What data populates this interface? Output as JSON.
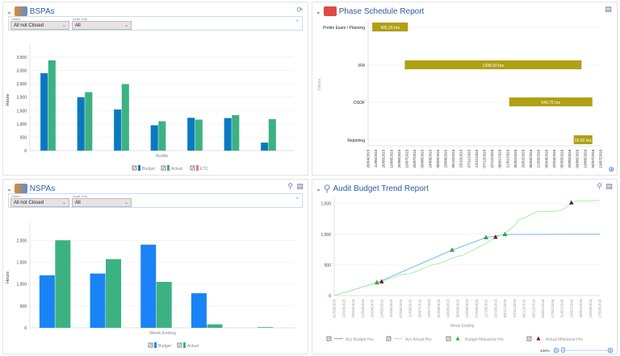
{
  "bspas": {
    "title": "BSPAs",
    "filters": {
      "status_label": "Status",
      "status_value": "All not Closed",
      "year_label": "Audit Year",
      "year_value": "All"
    },
    "colors": {
      "budget": "#0a79bf",
      "actual": "#3cb283",
      "etc": "#d98080"
    },
    "legend": [
      "Budget",
      "Actual",
      "ETC"
    ]
  },
  "nspas": {
    "title": "NSPAs",
    "filters": {
      "status_label": "Status",
      "status_value": "All not Closed",
      "year_label": "Audit Year",
      "year_value": "All"
    },
    "colors": {
      "budget": "#1a83f5",
      "actual": "#3cb283"
    },
    "legend": [
      "Budget",
      "Actual"
    ]
  },
  "phase": {
    "title": "Phase Schedule Report",
    "color": "#b0a014"
  },
  "trend": {
    "title": "Audit Budget Trend Report",
    "zoom_label": "100%",
    "zoom_level": 0.25,
    "colors": {
      "budget": "#6aaef0",
      "actual": "#9ef09a",
      "budget_ms": "#22bb22",
      "actual_ms": "#7a1030"
    }
  },
  "chart_data": [
    {
      "type": "bar",
      "id": "bspas",
      "xlabel": "Audits",
      "ylabel": "Hours",
      "ylim": [
        0,
        3800
      ],
      "yticks": [
        0,
        500,
        1000,
        1500,
        2000,
        2500,
        3000,
        3500
      ],
      "ytick_labels": [
        "0",
        "500",
        "1,000",
        "1,500",
        "2,000",
        "2,500",
        "3,000",
        "3,500"
      ],
      "grid": true,
      "legend": "bottom",
      "series": [
        {
          "name": "Budget",
          "values": [
            2900,
            2000,
            1540,
            950,
            1230,
            1220,
            300
          ]
        },
        {
          "name": "Actual",
          "values": [
            3380,
            2190,
            2490,
            1100,
            1160,
            1330,
            1180
          ]
        },
        {
          "name": "ETC",
          "values": [
            0,
            0,
            0,
            0,
            0,
            0,
            0
          ]
        }
      ]
    },
    {
      "type": "bar",
      "id": "nspas",
      "xlabel": "Week Ending",
      "ylabel": "Hours",
      "ylim": [
        0,
        2300
      ],
      "yticks": [
        0,
        500,
        1000,
        1500,
        2000
      ],
      "ytick_labels": [
        "0",
        "500",
        "1,000",
        "1,500",
        "2,000"
      ],
      "grid": true,
      "legend": "bottom",
      "series": [
        {
          "name": "Budget",
          "values": [
            1200,
            1240,
            1900,
            790,
            0
          ]
        },
        {
          "name": "Actual",
          "values": [
            2000,
            1570,
            1050,
            80,
            15
          ]
        }
      ]
    },
    {
      "type": "bar",
      "orientation": "horizontal-gantt",
      "id": "phase",
      "ylabel": "Values",
      "categories": [
        "Prelim Exam / Planning",
        "IFR",
        "DSOF",
        "Reporting"
      ],
      "tasks": [
        {
          "start": "2015-05-04",
          "end": "2015-07-12",
          "label": "405.25 hrs"
        },
        {
          "start": "2015-07-06",
          "end": "2016-06-12",
          "label": "1396.50 hrs"
        },
        {
          "start": "2016-01-24",
          "end": "2016-07-03",
          "label": "540.75 hrs"
        },
        {
          "start": "2016-05-28",
          "end": "2016-07-03",
          "label": "35.50 hrs"
        }
      ],
      "xlim": [
        "2015-04-26",
        "2016-07-19"
      ],
      "xtick_labels": [
        "26/04/2015",
        "11/05/2015",
        "26/05/2015",
        "10/06/2015",
        "25/06/2015",
        "10/07/2015",
        "25/07/2015",
        "09/08/2015",
        "24/08/2015",
        "08/09/2015",
        "23/09/2015",
        "08/10/2015",
        "23/10/2015",
        "07/11/2015",
        "22/11/2015",
        "07/12/2015",
        "22/12/2015",
        "06/01/2016",
        "21/01/2016",
        "05/02/2016",
        "20/02/2016",
        "06/03/2016",
        "21/03/2016",
        "05/04/2016",
        "20/04/2016",
        "05/05/2016",
        "20/05/2016",
        "04/06/2016",
        "19/06/2016",
        "04/07/2016",
        "19/07/2016"
      ],
      "grid": true
    },
    {
      "type": "line",
      "id": "trend",
      "xlabel": "Week Ending",
      "ylim": [
        0,
        1600
      ],
      "yticks": [
        0,
        500,
        1000,
        1500
      ],
      "ytick_labels": [
        "0",
        "500",
        "1,000",
        "1,500"
      ],
      "xlim": [
        "2015-03-01",
        "2016-03-27"
      ],
      "xtick_labels": [
        "01/03/2015",
        "15/03/2015",
        "29/03/2015",
        "12/04/2015",
        "26/04/2015",
        "10/05/2015",
        "24/05/2015",
        "07/06/2015",
        "21/06/2015",
        "05/07/2015",
        "19/07/2015",
        "02/08/2015",
        "16/08/2015",
        "30/08/2015",
        "13/09/2015",
        "27/09/2015",
        "11/10/2015",
        "25/10/2015",
        "08/11/2015",
        "22/11/2015",
        "06/12/2015",
        "20/12/2015",
        "03/01/2016",
        "17/01/2016",
        "31/01/2016",
        "14/02/2016",
        "28/02/2016",
        "13/03/2016",
        "27/03/2016"
      ],
      "grid": true,
      "legend": "bottom",
      "series": [
        {
          "name": "Acc Budget Hrs",
          "kind": "line",
          "points": [
            [
              "2015-03-01",
              0
            ],
            [
              "2015-05-03",
              210
            ],
            [
              "2015-08-22",
              740
            ],
            [
              "2015-10-11",
              945
            ],
            [
              "2015-11-08",
              995
            ],
            [
              "2016-03-27",
              1000
            ]
          ]
        },
        {
          "name": "Acc Actual Hrs",
          "kind": "line",
          "points": [
            [
              "2015-03-01",
              0
            ],
            [
              "2015-04-26",
              190
            ],
            [
              "2015-05-10",
              230
            ],
            [
              "2015-06-07",
              340
            ],
            [
              "2015-06-21",
              360
            ],
            [
              "2015-07-05",
              410
            ],
            [
              "2015-07-19",
              490
            ],
            [
              "2015-08-02",
              520
            ],
            [
              "2015-08-16",
              580
            ],
            [
              "2015-08-30",
              640
            ],
            [
              "2015-09-06",
              650
            ],
            [
              "2015-09-27",
              770
            ],
            [
              "2015-10-11",
              850
            ],
            [
              "2015-10-25",
              950
            ],
            [
              "2015-11-08",
              1010
            ],
            [
              "2015-11-22",
              1140
            ],
            [
              "2015-11-29",
              1240
            ],
            [
              "2015-12-06",
              1260
            ],
            [
              "2015-12-20",
              1340
            ],
            [
              "2015-12-27",
              1370
            ],
            [
              "2016-01-17",
              1370
            ],
            [
              "2016-01-24",
              1380
            ],
            [
              "2016-01-31",
              1390
            ],
            [
              "2016-02-14",
              1510
            ],
            [
              "2016-02-21",
              1540
            ],
            [
              "2016-03-20",
              1540
            ],
            [
              "2016-03-27",
              1555
            ]
          ]
        },
        {
          "name": "Budget Milestone Hrs",
          "kind": "marker",
          "points": [
            [
              "2015-05-03",
              210
            ],
            [
              "2015-08-22",
              740
            ],
            [
              "2015-10-11",
              945
            ],
            [
              "2015-11-08",
              995
            ]
          ]
        },
        {
          "name": "Actual Milestone Hrs",
          "kind": "marker",
          "points": [
            [
              "2015-05-10",
              225
            ],
            [
              "2015-10-25",
              950
            ],
            [
              "2016-02-14",
              1510
            ]
          ]
        }
      ]
    }
  ]
}
